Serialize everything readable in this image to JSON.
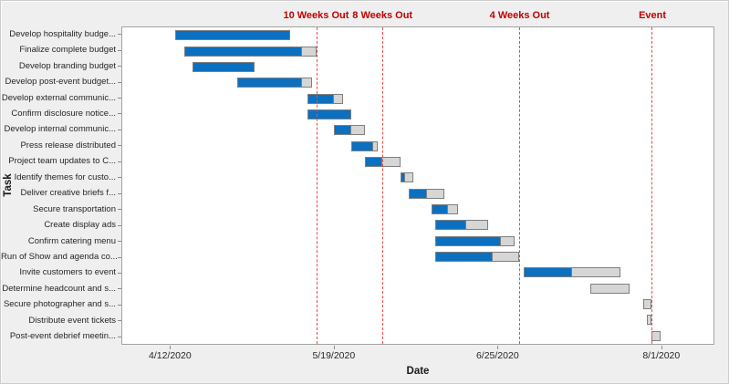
{
  "figure": {
    "background_color": "#efefef",
    "plot_background_color": "#ffffff",
    "plot_border_color": "#a3a3a3"
  },
  "colors": {
    "bar_complete": "#0b70c0",
    "bar_remaining": "#d6d6d6",
    "bar_border": "#7f7f7f",
    "milestone_line": "#ee4a3e",
    "milestone_text": "#c00000",
    "axis_text": "#262626"
  },
  "chart_data": {
    "type": "gantt",
    "title": "",
    "xlabel": "Date",
    "ylabel": "Task",
    "grid": "off",
    "x_domain": [
      "2020-04-01",
      "2020-08-13"
    ],
    "x_ticks": [
      {
        "label": "4/12/2020",
        "date": "2020-04-12"
      },
      {
        "label": "5/19/2020",
        "date": "2020-05-19"
      },
      {
        "label": "6/25/2020",
        "date": "2020-06-25"
      },
      {
        "label": "8/1/2020",
        "date": "2020-08-01"
      }
    ],
    "milestones": [
      {
        "label": "10 Weeks Out",
        "date": "2020-05-15"
      },
      {
        "label": "8 Weeks Out",
        "date": "2020-05-30"
      },
      {
        "label": "4 Weeks Out",
        "date": "2020-06-30"
      },
      {
        "label": "Event",
        "date": "2020-07-30"
      }
    ],
    "tasks": [
      {
        "label": "Develop hospitality budge...",
        "start": "2020-04-13",
        "progress_end": "2020-05-09",
        "end": "2020-05-09"
      },
      {
        "label": "Finalize complete budget",
        "start": "2020-04-15",
        "progress_end": "2020-05-12",
        "end": "2020-05-15"
      },
      {
        "label": "Develop branding budget",
        "start": "2020-04-17",
        "progress_end": "2020-05-01",
        "end": "2020-05-01"
      },
      {
        "label": "Develop post-event budget...",
        "start": "2020-04-27",
        "progress_end": "2020-05-12",
        "end": "2020-05-14"
      },
      {
        "label": "Develop external communic...",
        "start": "2020-05-13",
        "progress_end": "2020-05-19",
        "end": "2020-05-21"
      },
      {
        "label": "Confirm disclosure notice...",
        "start": "2020-05-13",
        "progress_end": "2020-05-23",
        "end": "2020-05-23"
      },
      {
        "label": "Develop internal communic...",
        "start": "2020-05-19",
        "progress_end": "2020-05-23",
        "end": "2020-05-26"
      },
      {
        "label": "Press release distributed",
        "start": "2020-05-23",
        "progress_end": "2020-05-28",
        "end": "2020-05-29"
      },
      {
        "label": "Project team updates to C...",
        "start": "2020-05-26",
        "progress_end": "2020-05-30",
        "end": "2020-06-03"
      },
      {
        "label": "Identify themes for custo...",
        "start": "2020-06-03",
        "progress_end": "2020-06-04",
        "end": "2020-06-06"
      },
      {
        "label": "Deliver creative briefs f...",
        "start": "2020-06-05",
        "progress_end": "2020-06-09",
        "end": "2020-06-13"
      },
      {
        "label": "Secure transportation",
        "start": "2020-06-10",
        "progress_end": "2020-06-14",
        "end": "2020-06-16"
      },
      {
        "label": "Create display ads",
        "start": "2020-06-11",
        "progress_end": "2020-06-18",
        "end": "2020-06-23"
      },
      {
        "label": "Confirm catering menu",
        "start": "2020-06-11",
        "progress_end": "2020-06-26",
        "end": "2020-06-29"
      },
      {
        "label": "Run of Show and agenda co...",
        "start": "2020-06-11",
        "progress_end": "2020-06-24",
        "end": "2020-06-30"
      },
      {
        "label": "Invite customers to event",
        "start": "2020-07-01",
        "progress_end": "2020-07-12",
        "end": "2020-07-23"
      },
      {
        "label": "Determine headcount and s...",
        "start": "2020-07-16",
        "progress_end": "2020-07-16",
        "end": "2020-07-25"
      },
      {
        "label": "Secure photographer and s...",
        "start": "2020-07-28",
        "progress_end": "2020-07-28",
        "end": "2020-07-30"
      },
      {
        "label": "Distribute event tickets",
        "start": "2020-07-29",
        "progress_end": "2020-07-29",
        "end": "2020-07-30"
      },
      {
        "label": "Post-event debrief meetin...",
        "start": "2020-07-30",
        "progress_end": "2020-07-30",
        "end": "2020-08-01"
      }
    ]
  }
}
